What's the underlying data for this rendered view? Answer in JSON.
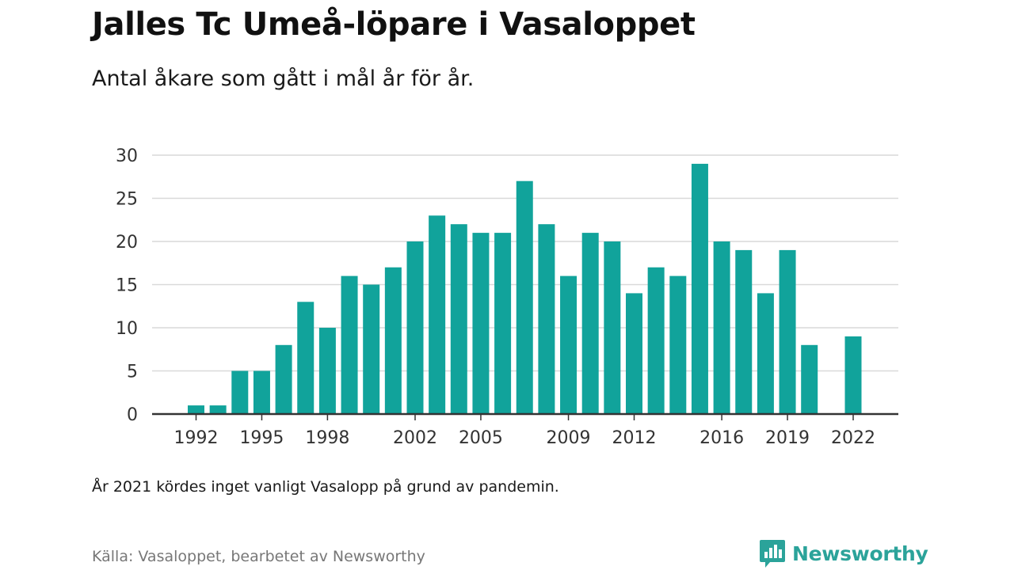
{
  "header": {
    "title": "Jalles Tc Umeå-löpare i Vasaloppet",
    "subtitle": "Antal åkare som gått i mål år för år."
  },
  "footer": {
    "note": "År 2021 kördes inget vanligt Vasalopp på grund av pandemin.",
    "source": "Källa: Vasaloppet, bearbetet av Newsworthy",
    "brand": "Newsworthy"
  },
  "colors": {
    "bar": "#11a39b",
    "grid": "#d9d9d9",
    "axis": "#333333",
    "brand": "#2ba39a"
  },
  "chart_data": {
    "type": "bar",
    "x": [
      1992,
      1993,
      1994,
      1995,
      1996,
      1997,
      1998,
      1999,
      2000,
      2001,
      2002,
      2003,
      2004,
      2005,
      2006,
      2007,
      2008,
      2009,
      2010,
      2011,
      2012,
      2013,
      2014,
      2015,
      2016,
      2017,
      2018,
      2019,
      2020,
      2021,
      2022
    ],
    "values": [
      1,
      1,
      5,
      5,
      8,
      13,
      10,
      16,
      15,
      17,
      20,
      23,
      22,
      21,
      21,
      27,
      22,
      16,
      21,
      20,
      14,
      17,
      16,
      29,
      20,
      19,
      14,
      19,
      8,
      null,
      9
    ],
    "xticks": [
      "1992",
      "1995",
      "1998",
      "2002",
      "2005",
      "2009",
      "2012",
      "2016",
      "2019",
      "2022"
    ],
    "yticks": [
      "0",
      "5",
      "10",
      "15",
      "20",
      "25",
      "30"
    ],
    "ylim": [
      0,
      30
    ],
    "grid": true,
    "legend": false
  }
}
